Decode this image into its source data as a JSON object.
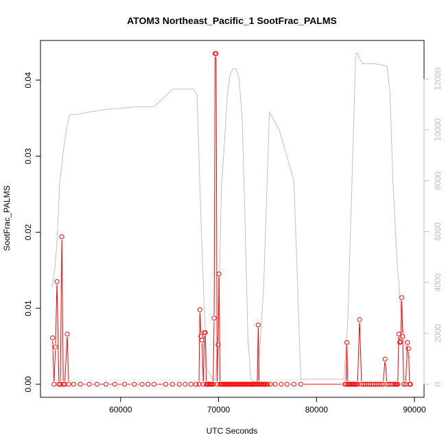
{
  "chart_data": {
    "type": "line",
    "title": "ATOM3 Northeast_Pacific_1 SootFrac_PALMS",
    "xlabel": "UTC Seconds",
    "ylabel": "SootFrac_PALMS",
    "xlim": [
      52800,
      90000
    ],
    "ylim": [
      0,
      0.0435
    ],
    "y2lim": [
      0,
      13000
    ],
    "x_ticks": [
      60000,
      70000,
      80000,
      90000
    ],
    "x_tick_labels": [
      "60000",
      "70000",
      "80000",
      "90000"
    ],
    "y_ticks": [
      0,
      0.01,
      0.02,
      0.03,
      0.04
    ],
    "y_tick_labels": [
      "0.00",
      "0.01",
      "0.02",
      "0.03",
      "0.04"
    ],
    "y2_ticks": [
      0,
      2000,
      4000,
      6000,
      8000,
      10000,
      12000
    ],
    "y2_tick_labels": [
      "0",
      "2000",
      "4000",
      "6000",
      "8000",
      "10000",
      "12000"
    ],
    "colors": {
      "soot": "#ff0000",
      "altitude": "#bebebe",
      "axis": "#000000"
    },
    "series": [
      {
        "values_x": [
          53050,
          53200,
          53350,
          53500,
          53700,
          53850,
          54000,
          54150,
          54300,
          54550,
          54700,
          55200,
          55900,
          56800,
          57600,
          58500,
          59400,
          60400,
          61400,
          62200,
          62800,
          63400,
          64600,
          65300,
          66000,
          66600,
          67200,
          67700,
          68000,
          68100,
          68200,
          68300,
          68450,
          68550,
          68650,
          68750,
          68850,
          68950,
          69050,
          69150,
          69250,
          69350,
          69450,
          69550,
          69650,
          69750,
          69850,
          69950,
          70050,
          70150,
          70250,
          70350,
          70450,
          70550,
          70650,
          70750,
          70850,
          70950,
          71050,
          71150,
          71250,
          71350,
          71450,
          71550,
          71650,
          71750,
          71850,
          71950,
          72050,
          72150,
          72250,
          72350,
          72450,
          72550,
          72650,
          72750,
          72850,
          72950,
          73050,
          73150,
          73250,
          73350,
          73450,
          73550,
          73650,
          73750,
          73850,
          73950,
          74050,
          74150,
          74250,
          74350,
          74450,
          74550,
          74650,
          74750,
          74850,
          75000,
          75300,
          75800,
          76400,
          77000,
          77700,
          78400,
          82900,
          83000,
          83100,
          83200,
          83300,
          83400,
          83500,
          83600,
          83700,
          83800,
          83900,
          84000,
          84100,
          84200,
          84400,
          84600,
          84800,
          85000,
          85200,
          85400,
          85600,
          85800,
          86000,
          86200,
          86400,
          86600,
          86800,
          87000,
          87200,
          87400,
          87600,
          87800,
          88000,
          88100,
          88200,
          88300,
          88400,
          88500,
          88600,
          88700,
          88800,
          88900,
          89100,
          89300,
          89400,
          89500,
          89600
        ],
        "values_y": [
          0.0061,
          0.0,
          0.0049,
          0.0135,
          0.0,
          0.0,
          0.0194,
          0.0,
          0.0,
          0.0066,
          0.0,
          0.0,
          0.0,
          0.0,
          0.0,
          0.0,
          0.0,
          0.0,
          0.0,
          0.0,
          0.0,
          0.0,
          0.0,
          0.0,
          0.0,
          0.0,
          0.0,
          0.0,
          0.0,
          0.0098,
          0.0063,
          0.0058,
          0.0,
          0.0068,
          0.0068,
          0.0,
          0.0,
          0.0,
          0.0,
          0.0,
          0.0,
          0.0,
          0.0,
          0.0087,
          0.0435,
          0.0435,
          0.0,
          0.0052,
          0.0145,
          0.0,
          0.0,
          0.0,
          0.0,
          0.0,
          0.0,
          0.0,
          0.0,
          0.0,
          0.0,
          0.0,
          0.0,
          0.0,
          0.0,
          0.0,
          0.0,
          0.0,
          0.0,
          0.0,
          0.0,
          0.0,
          0.0,
          0.0,
          0.0,
          0.0,
          0.0,
          0.0,
          0.0,
          0.0,
          0.0,
          0.0,
          0.0,
          0.0,
          0.0,
          0.0,
          0.0,
          0.0,
          0.0,
          0.0,
          0.0078,
          0.0,
          0.0,
          0.0,
          0.0,
          0.0,
          0.0,
          0.0,
          0.0,
          0.0,
          0.0,
          0.0,
          0.0,
          0.0,
          0.0,
          0.0,
          0.0,
          0.0,
          0.0055,
          0.0,
          0.0,
          0.0,
          0.0,
          0.0,
          0.0,
          0.0,
          0.0,
          0.0,
          0.0,
          0.0,
          0.0085,
          0.0,
          0.0,
          0.0,
          0.0,
          0.0,
          0.0,
          0.0,
          0.0,
          0.0,
          0.0,
          0.0,
          0.0,
          0.0033,
          0.0,
          0.0,
          0.0,
          0.0,
          0.0,
          0.0,
          0.0,
          0.0,
          0.0066,
          0.0055,
          0.0056,
          0.0114,
          0.0063,
          0.0,
          0.0,
          0.0055,
          0.0047,
          0.0,
          0.0
        ]
      },
      {
        "values_x": [
          53000,
          53300,
          53500,
          53800,
          54200,
          54500,
          54800,
          55500,
          56800,
          58500,
          60000,
          61500,
          63400,
          65300,
          67400,
          67800,
          68200,
          68500,
          68800,
          69100,
          69400,
          69700,
          70000,
          70300,
          70600,
          70900,
          71200,
          71500,
          71800,
          72100,
          72400,
          72700,
          73000,
          73300,
          73600,
          74000,
          74600,
          75200,
          76200,
          77700,
          78400,
          79000,
          80000,
          82000,
          82800,
          83200,
          83700,
          84000,
          84200,
          84400,
          84700,
          85000,
          86000,
          87200,
          87500,
          87800,
          88200,
          88700,
          89200,
          89600
        ],
        "values_y": [
          3800,
          4600,
          5600,
          8000,
          9300,
          10100,
          10600,
          10600,
          10700,
          10800,
          10850,
          10900,
          10900,
          11600,
          11600,
          11400,
          6500,
          3400,
          600,
          400,
          200,
          150,
          2500,
          7800,
          9500,
          11400,
          12200,
          12400,
          12400,
          12000,
          10500,
          6500,
          1800,
          200,
          100,
          100,
          3800,
          10700,
          10000,
          8000,
          200,
          200,
          200,
          200,
          200,
          2500,
          9000,
          13000,
          13000,
          12800,
          12600,
          12600,
          12600,
          12500,
          11500,
          8000,
          5000,
          2500,
          1200,
          1000
        ]
      }
    ]
  }
}
